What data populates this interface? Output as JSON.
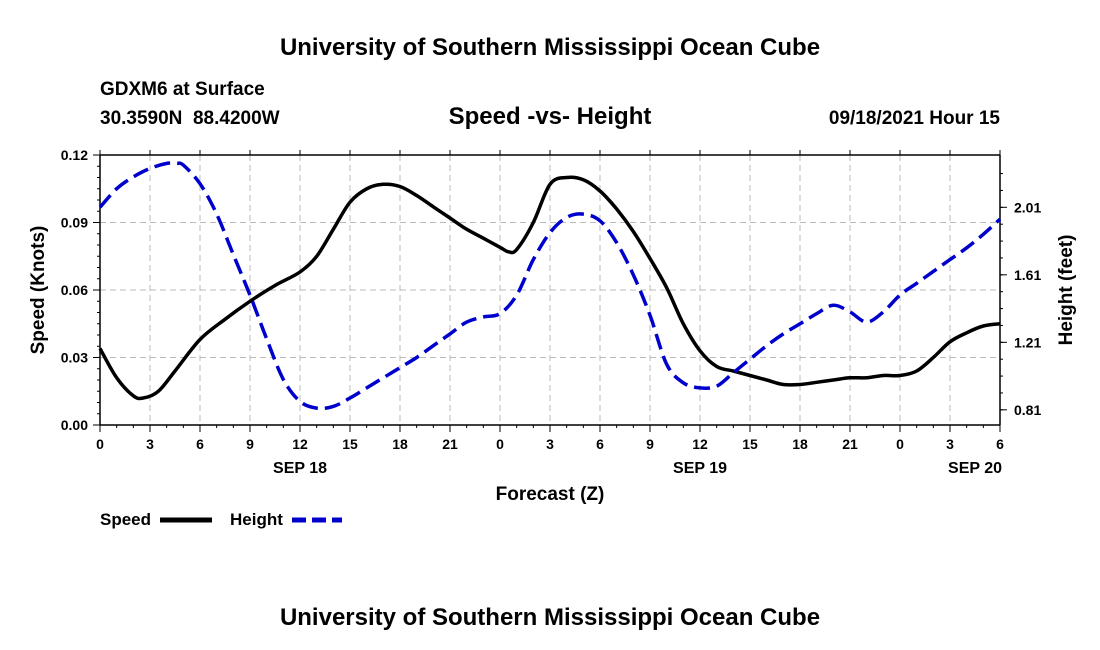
{
  "header": {
    "title_top": "University of Southern Mississippi Ocean Cube",
    "title_bottom": "University of Southern Mississippi Ocean Cube",
    "station": "GDXM6 at Surface",
    "coords": "30.3590N  88.4200W",
    "datetime": "09/18/2021 Hour 15"
  },
  "legend": {
    "speed_label": "Speed",
    "height_label": "Height"
  },
  "colors": {
    "speed": "#000000",
    "height": "#0000cc",
    "grid": "#bbbbbb"
  },
  "chart_data": {
    "type": "line",
    "title": "Speed -vs- Height",
    "xlabel": "Forecast (Z)",
    "ylabel": "Speed (Knots)",
    "y2label": "Height (feet)",
    "x_range": [
      0,
      54
    ],
    "x_tick_hours": [
      0,
      3,
      6,
      9,
      12,
      15,
      18,
      21,
      24,
      27,
      30,
      33,
      36,
      39,
      42,
      45,
      48,
      51,
      54
    ],
    "x_tick_labels": [
      "0",
      "3",
      "6",
      "9",
      "12",
      "15",
      "18",
      "21",
      "0",
      "3",
      "6",
      "9",
      "12",
      "15",
      "18",
      "21",
      "0",
      "3",
      "6"
    ],
    "date_labels": [
      {
        "hour": 12,
        "label": "SEP 18"
      },
      {
        "hour": 36,
        "label": "SEP 19"
      },
      {
        "hour": 52.5,
        "label": "SEP 20"
      }
    ],
    "y_range": [
      0,
      0.12
    ],
    "y_ticks": [
      0,
      0.03,
      0.06,
      0.09,
      0.12
    ],
    "y_tick_labels": [
      "0.00",
      "0.03",
      "0.06",
      "0.09",
      "0.12"
    ],
    "y2_range": [
      0.72,
      2.32
    ],
    "y2_ticks": [
      0.81,
      1.21,
      1.61,
      2.01
    ],
    "y2_tick_labels": [
      "0.81",
      "1.21",
      "1.61",
      "2.01"
    ],
    "grid": true,
    "series": [
      {
        "name": "Speed",
        "axis": "left",
        "style": "solid",
        "x": [
          0,
          1,
          2,
          2.6,
          3.5,
          4.5,
          6,
          7.5,
          9,
          10.5,
          12,
          13,
          14,
          15,
          16,
          17,
          18,
          19,
          20,
          21,
          22,
          23,
          24,
          24.5,
          25,
          26,
          27,
          28,
          29,
          30,
          31,
          32,
          33,
          34,
          35,
          36,
          37,
          38,
          39,
          40,
          41,
          42,
          43,
          44,
          45,
          46,
          47,
          48,
          49,
          50,
          51,
          52,
          53,
          54
        ],
        "values": [
          0.034,
          0.021,
          0.013,
          0.012,
          0.015,
          0.024,
          0.038,
          0.047,
          0.055,
          0.062,
          0.068,
          0.075,
          0.087,
          0.099,
          0.105,
          0.107,
          0.106,
          0.102,
          0.097,
          0.092,
          0.087,
          0.083,
          0.079,
          0.077,
          0.078,
          0.09,
          0.107,
          0.11,
          0.109,
          0.104,
          0.096,
          0.086,
          0.074,
          0.061,
          0.045,
          0.033,
          0.026,
          0.024,
          0.022,
          0.02,
          0.018,
          0.018,
          0.019,
          0.02,
          0.021,
          0.021,
          0.022,
          0.022,
          0.024,
          0.03,
          0.037,
          0.041,
          0.044,
          0.045
        ]
      },
      {
        "name": "Height",
        "axis": "right",
        "style": "dashed",
        "x": [
          0,
          1,
          2,
          3,
          4,
          4.6,
          5,
          6,
          7,
          8,
          9,
          10,
          11,
          12,
          13,
          14,
          15,
          16,
          17,
          18,
          19,
          20,
          21,
          22,
          23,
          24,
          25,
          26,
          27,
          28,
          29,
          30,
          31,
          32,
          33,
          34,
          35,
          36,
          37,
          38,
          39,
          40,
          41,
          42,
          43,
          44,
          45,
          46,
          47,
          48,
          49,
          50,
          51,
          52,
          53,
          54
        ],
        "values": [
          2.01,
          2.12,
          2.19,
          2.24,
          2.27,
          2.27,
          2.26,
          2.15,
          1.97,
          1.73,
          1.49,
          1.23,
          0.99,
          0.86,
          0.82,
          0.83,
          0.88,
          0.94,
          1.0,
          1.06,
          1.12,
          1.19,
          1.26,
          1.33,
          1.36,
          1.38,
          1.49,
          1.7,
          1.86,
          1.95,
          1.97,
          1.93,
          1.8,
          1.61,
          1.37,
          1.08,
          0.97,
          0.94,
          0.95,
          1.03,
          1.11,
          1.19,
          1.26,
          1.32,
          1.38,
          1.43,
          1.39,
          1.33,
          1.39,
          1.49,
          1.56,
          1.63,
          1.7,
          1.77,
          1.85,
          1.94
        ]
      }
    ]
  }
}
